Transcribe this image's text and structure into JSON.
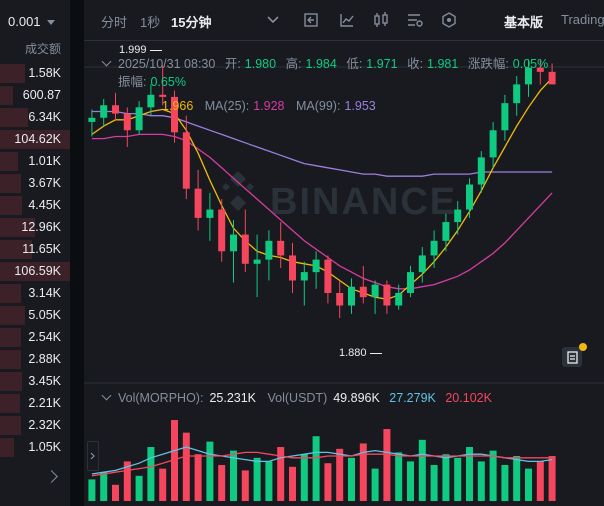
{
  "left_panel": {
    "precision": "0.001",
    "column_header": "成交额",
    "volumes": [
      "1.58K",
      "600.87",
      "6.34K",
      "104.62K",
      "1.01K",
      "3.67K",
      "4.45K",
      "12.96K",
      "11.65K",
      "106.59K",
      "3.14K",
      "5.05K",
      "2.54K",
      "2.88K",
      "3.45K",
      "2.21K",
      "2.32K",
      "1.05K"
    ],
    "depth_fill": [
      0.35,
      0.18,
      0.4,
      1.0,
      0.25,
      0.3,
      0.32,
      0.5,
      0.45,
      1.0,
      0.3,
      0.35,
      0.3,
      0.3,
      0.32,
      0.28,
      0.3,
      0.2
    ]
  },
  "toolbar": {
    "time_label": "分时",
    "one_sec": "1秒",
    "fifteen_min": "15分钟",
    "basic_label": "基本版",
    "trading_label": "Trading"
  },
  "info": {
    "datetime": "2025/10/31 08:30",
    "open_label": "开:",
    "open": "1.980",
    "high_label": "高:",
    "high": "1.984",
    "low_label": "低:",
    "low": "1.971",
    "close_label": "收:",
    "close": "1.981",
    "change_label": "涨跌幅:",
    "change": "0.05%",
    "amp_label": "振幅:",
    "amp": "0.65%"
  },
  "ma": {
    "ma7_value": "1.966",
    "ma25_label": "MA(25):",
    "ma25": "1.928",
    "ma99_label": "MA(99):",
    "ma99": "1.953",
    "colors": {
      "ma7": "#f0b90b",
      "ma25": "#d63ca1",
      "ma99": "#9b7fde"
    }
  },
  "vol_info": {
    "vol_label": "Vol(MORPHO):",
    "vol": "25.231K",
    "usdt_label": "Vol(USDT)",
    "usdt": "49.896K",
    "ma5": "27.279K",
    "ma10": "20.102K"
  },
  "annotations": {
    "high": "1.999",
    "low": "1.880"
  },
  "watermark": "BINANCE",
  "colors": {
    "up": "#0ecb81",
    "down": "#f6465d"
  },
  "chart_data": {
    "type": "candlestick",
    "ylim": [
      1.855,
      2.006
    ],
    "candles": [
      [
        1.972,
        1.978,
        1.965,
        1.974
      ],
      [
        1.974,
        1.983,
        1.97,
        1.98
      ],
      [
        1.98,
        1.986,
        1.973,
        1.976
      ],
      [
        1.976,
        1.979,
        1.96,
        1.968
      ],
      [
        1.968,
        1.982,
        1.966,
        1.979
      ],
      [
        1.979,
        1.99,
        1.975,
        1.985
      ],
      [
        1.985,
        1.999,
        1.98,
        1.984
      ],
      [
        1.984,
        1.987,
        1.962,
        1.967
      ],
      [
        1.967,
        1.975,
        1.935,
        1.94
      ],
      [
        1.94,
        1.949,
        1.92,
        1.926
      ],
      [
        1.926,
        1.938,
        1.915,
        1.93
      ],
      [
        1.93,
        1.935,
        1.905,
        1.91
      ],
      [
        1.91,
        1.925,
        1.895,
        1.918
      ],
      [
        1.918,
        1.93,
        1.9,
        1.904
      ],
      [
        1.904,
        1.918,
        1.888,
        1.906
      ],
      [
        1.906,
        1.92,
        1.896,
        1.915
      ],
      [
        1.915,
        1.924,
        1.902,
        1.908
      ],
      [
        1.908,
        1.914,
        1.89,
        1.896
      ],
      [
        1.896,
        1.905,
        1.884,
        1.9
      ],
      [
        1.9,
        1.91,
        1.892,
        1.906
      ],
      [
        1.906,
        1.908,
        1.885,
        1.89
      ],
      [
        1.89,
        1.896,
        1.878,
        1.884
      ],
      [
        1.884,
        1.897,
        1.88,
        1.893
      ],
      [
        1.893,
        1.903,
        1.885,
        1.888
      ],
      [
        1.888,
        1.896,
        1.88,
        1.894
      ],
      [
        1.894,
        1.896,
        1.88,
        1.884
      ],
      [
        1.884,
        1.894,
        1.882,
        1.89
      ],
      [
        1.89,
        1.903,
        1.888,
        1.9
      ],
      [
        1.9,
        1.912,
        1.895,
        1.908
      ],
      [
        1.908,
        1.92,
        1.902,
        1.915
      ],
      [
        1.915,
        1.928,
        1.91,
        1.924
      ],
      [
        1.924,
        1.934,
        1.918,
        1.93
      ],
      [
        1.93,
        1.945,
        1.926,
        1.942
      ],
      [
        1.942,
        1.958,
        1.938,
        1.955
      ],
      [
        1.955,
        1.972,
        1.95,
        1.968
      ],
      [
        1.968,
        1.985,
        1.963,
        1.981
      ],
      [
        1.981,
        1.994,
        1.975,
        1.99
      ],
      [
        1.99,
        2.002,
        1.984,
        1.998
      ],
      [
        1.998,
        2.002,
        1.99,
        1.996
      ],
      [
        1.996,
        2.0,
        1.99,
        1.99
      ]
    ],
    "volumes": [
      12,
      16,
      9,
      22,
      14,
      30,
      18,
      45,
      38,
      26,
      33,
      20,
      28,
      17,
      24,
      22,
      30,
      19,
      26,
      36,
      21,
      29,
      24,
      32,
      18,
      40,
      27,
      22,
      34,
      20,
      26,
      24,
      30,
      22,
      28,
      20,
      25,
      18,
      22,
      25
    ],
    "ma7": [
      1.966,
      1.97,
      1.973,
      1.973,
      1.975,
      1.977,
      1.978,
      1.976,
      1.968,
      1.957,
      1.944,
      1.932,
      1.921,
      1.915,
      1.91,
      1.908,
      1.907,
      1.905,
      1.904,
      1.903,
      1.9,
      1.896,
      1.892,
      1.89,
      1.888,
      1.887,
      1.889,
      1.894,
      1.899,
      1.905,
      1.912,
      1.92,
      1.929,
      1.939,
      1.95,
      1.96,
      1.97,
      1.979,
      1.987,
      1.993
    ],
    "ma25": [
      1.964,
      1.964,
      1.965,
      1.965,
      1.966,
      1.966,
      1.966,
      1.965,
      1.963,
      1.959,
      1.955,
      1.95,
      1.945,
      1.94,
      1.935,
      1.93,
      1.925,
      1.92,
      1.915,
      1.911,
      1.907,
      1.903,
      1.9,
      1.897,
      1.895,
      1.893,
      1.892,
      1.892,
      1.893,
      1.894,
      1.896,
      1.898,
      1.901,
      1.905,
      1.909,
      1.914,
      1.92,
      1.926,
      1.932,
      1.938
    ],
    "ma99": [
      1.977,
      1.977,
      1.977,
      1.976,
      1.976,
      1.975,
      1.975,
      1.974,
      1.972,
      1.97,
      1.968,
      1.966,
      1.964,
      1.962,
      1.96,
      1.958,
      1.956,
      1.954,
      1.952,
      1.951,
      1.95,
      1.949,
      1.948,
      1.947,
      1.947,
      1.946,
      1.946,
      1.946,
      1.946,
      1.947,
      1.947,
      1.947,
      1.947,
      1.948,
      1.948,
      1.948,
      1.948,
      1.948,
      1.948,
      1.948
    ],
    "vol_ma5": [
      15,
      16,
      17,
      19,
      21,
      24,
      26,
      28,
      30,
      28,
      26,
      25,
      24,
      23,
      22,
      22,
      24,
      25,
      26,
      27,
      27,
      26,
      25,
      27,
      28,
      27,
      26,
      25,
      26,
      25,
      24,
      25,
      26,
      26,
      25,
      24,
      23,
      22,
      22,
      23
    ],
    "vol_ma10": [
      14,
      15,
      16,
      17,
      18,
      19,
      21,
      23,
      25,
      25,
      25,
      25,
      26,
      27,
      27,
      26,
      25,
      24,
      24,
      24,
      25,
      25,
      25,
      26,
      26,
      26,
      25,
      25,
      25,
      25,
      25,
      25,
      25,
      25,
      25,
      24,
      24,
      24,
      24,
      24
    ]
  }
}
